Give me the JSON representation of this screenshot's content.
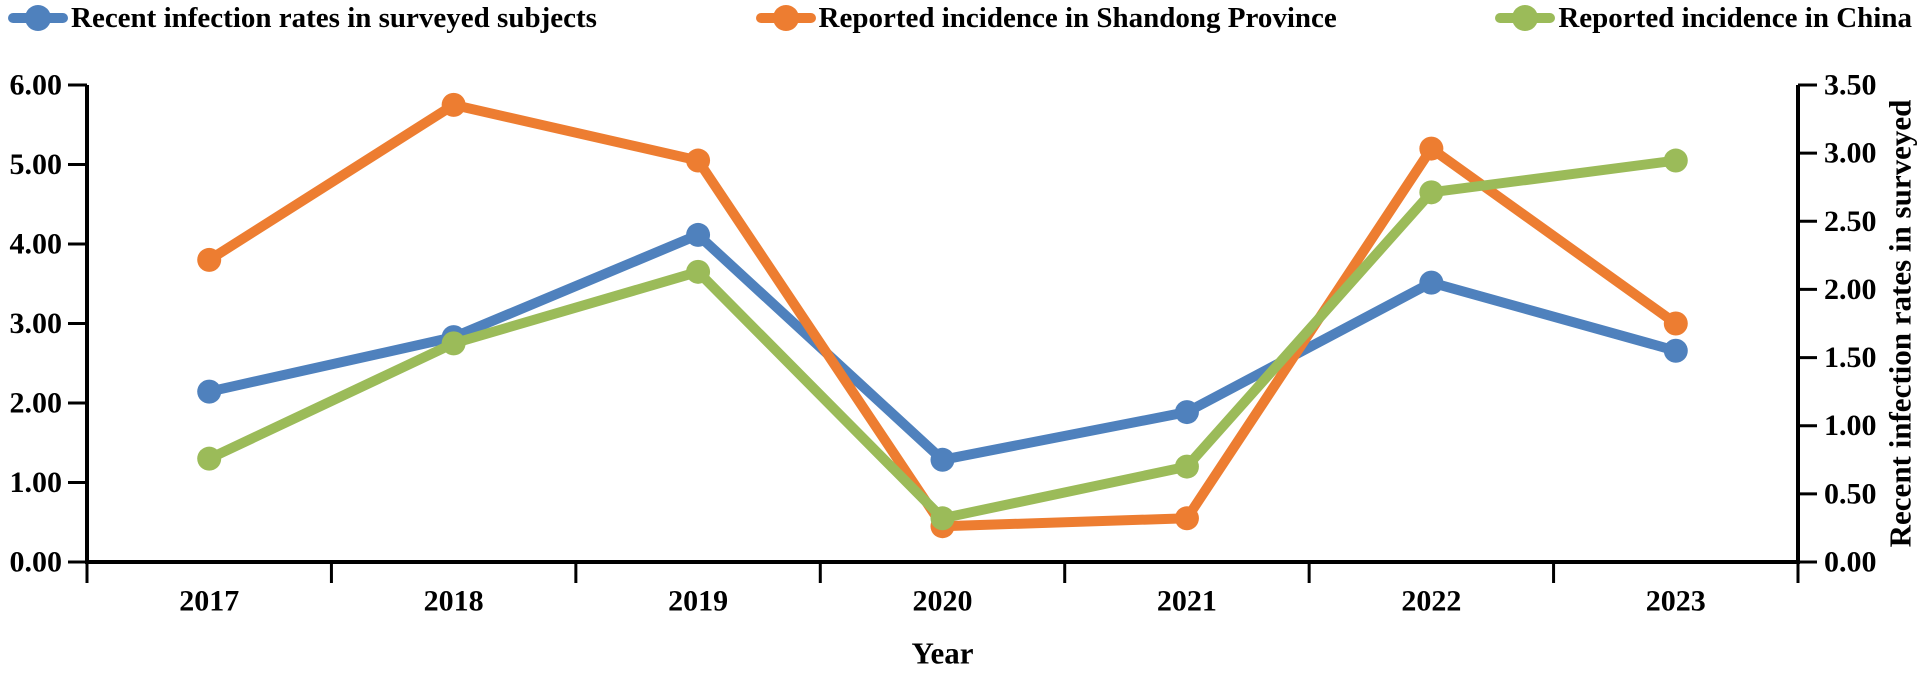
{
  "page": {
    "background": "#ffffff",
    "text_color": "#000000",
    "axis_color": "#000000"
  },
  "chart_data": {
    "type": "line",
    "title": "",
    "categories": [
      "2017",
      "2018",
      "2019",
      "2020",
      "2021",
      "2022",
      "2023"
    ],
    "series": [
      {
        "name": "Recent infection rates in surveyed subjects",
        "color": "#4F81BD",
        "axis": "right",
        "values": [
          1.25,
          1.65,
          2.4,
          0.75,
          1.1,
          2.05,
          1.55
        ]
      },
      {
        "name": "Reported incidence in Shandong Province",
        "color": "#ED7D31",
        "axis": "left",
        "values": [
          3.8,
          5.75,
          5.05,
          0.45,
          0.55,
          5.2,
          3.0
        ]
      },
      {
        "name": "Reported incidence in China",
        "color": "#9BBB59",
        "axis": "left",
        "values": [
          1.3,
          2.75,
          3.65,
          0.55,
          1.2,
          4.65,
          5.05
        ]
      }
    ],
    "xlabel": "Year",
    "left_axis": {
      "min": 0,
      "max": 6,
      "step": 1,
      "tick_labels": [
        "0.00",
        "1.00",
        "2.00",
        "3.00",
        "4.00",
        "5.00",
        "6.00"
      ]
    },
    "right_axis": {
      "min": 0,
      "max": 3.5,
      "step": 0.5,
      "title": "Recent infection rates in surveyed",
      "tick_labels": [
        "0.00",
        "0.50",
        "1.00",
        "1.50",
        "2.00",
        "2.50",
        "3.00",
        "3.50"
      ]
    },
    "grid": false,
    "legend_position": "top"
  }
}
